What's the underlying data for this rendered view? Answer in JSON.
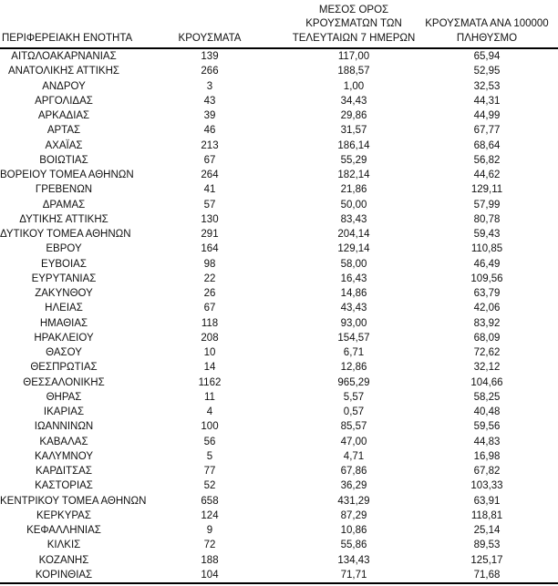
{
  "table": {
    "columns": [
      {
        "id": "region",
        "label_lines": [
          "ΠΕΡΙΦΕΡΕΙΑΚΗ ΕΝΟΤΗΤΑ"
        ]
      },
      {
        "id": "cases",
        "label_lines": [
          "ΚΡΟΥΣΜΑΤΑ"
        ]
      },
      {
        "id": "avg7",
        "label_lines": [
          "ΜΕΣΟΣ ΟΡΟΣ",
          "ΚΡΟΥΣΜΑΤΩΝ ΤΩΝ",
          "ΤΕΛΕΥΤΑΙΩΝ 7 ΗΜΕΡΩΝ"
        ]
      },
      {
        "id": "per100k",
        "label_lines": [
          "ΚΡΟΥΣΜΑΤΑ ΑΝΑ 100000",
          "ΠΛΗΘΥΣΜΟ"
        ]
      }
    ],
    "rows": [
      {
        "region": "ΑΙΤΩΛΟΑΚΑΡΝΑΝΙΑΣ",
        "cases": "139",
        "avg7": "117,00",
        "per100k": "65,94"
      },
      {
        "region": "ΑΝΑΤΟΛΙΚΗΣ ΑΤΤΙΚΗΣ",
        "cases": "266",
        "avg7": "188,57",
        "per100k": "52,95"
      },
      {
        "region": "ΑΝΔΡΟΥ",
        "cases": "3",
        "avg7": "1,00",
        "per100k": "32,53"
      },
      {
        "region": "ΑΡΓΟΛΙΔΑΣ",
        "cases": "43",
        "avg7": "34,43",
        "per100k": "44,31"
      },
      {
        "region": "ΑΡΚΑΔΙΑΣ",
        "cases": "39",
        "avg7": "29,86",
        "per100k": "44,99"
      },
      {
        "region": "ΑΡΤΑΣ",
        "cases": "46",
        "avg7": "31,57",
        "per100k": "67,77"
      },
      {
        "region": "ΑΧΑΪΑΣ",
        "cases": "213",
        "avg7": "186,14",
        "per100k": "68,64"
      },
      {
        "region": "ΒΟΙΩΤΙΑΣ",
        "cases": "67",
        "avg7": "55,29",
        "per100k": "56,82"
      },
      {
        "region": "ΒΟΡΕΙΟΥ ΤΟΜΕΑ ΑΘΗΝΩΝ",
        "cases": "264",
        "avg7": "182,14",
        "per100k": "44,62"
      },
      {
        "region": "ΓΡΕΒΕΝΩΝ",
        "cases": "41",
        "avg7": "21,86",
        "per100k": "129,11"
      },
      {
        "region": "ΔΡΑΜΑΣ",
        "cases": "57",
        "avg7": "50,00",
        "per100k": "57,99"
      },
      {
        "region": "ΔΥΤΙΚΗΣ ΑΤΤΙΚΗΣ",
        "cases": "130",
        "avg7": "83,43",
        "per100k": "80,78"
      },
      {
        "region": "ΔΥΤΙΚΟΥ ΤΟΜΕΑ ΑΘΗΝΩΝ",
        "cases": "291",
        "avg7": "204,14",
        "per100k": "59,43"
      },
      {
        "region": "ΕΒΡΟΥ",
        "cases": "164",
        "avg7": "129,14",
        "per100k": "110,85"
      },
      {
        "region": "ΕΥΒΟΙΑΣ",
        "cases": "98",
        "avg7": "58,00",
        "per100k": "46,49"
      },
      {
        "region": "ΕΥΡΥΤΑΝΙΑΣ",
        "cases": "22",
        "avg7": "16,43",
        "per100k": "109,56"
      },
      {
        "region": "ΖΑΚΥΝΘΟΥ",
        "cases": "26",
        "avg7": "14,86",
        "per100k": "63,79"
      },
      {
        "region": "ΗΛΕΙΑΣ",
        "cases": "67",
        "avg7": "43,43",
        "per100k": "42,06"
      },
      {
        "region": "ΗΜΑΘΙΑΣ",
        "cases": "118",
        "avg7": "93,00",
        "per100k": "83,92"
      },
      {
        "region": "ΗΡΑΚΛΕΙΟΥ",
        "cases": "208",
        "avg7": "154,57",
        "per100k": "68,09"
      },
      {
        "region": "ΘΑΣΟΥ",
        "cases": "10",
        "avg7": "6,71",
        "per100k": "72,62"
      },
      {
        "region": "ΘΕΣΠΡΩΤΙΑΣ",
        "cases": "14",
        "avg7": "12,86",
        "per100k": "32,12"
      },
      {
        "region": "ΘΕΣΣΑΛΟΝΙΚΗΣ",
        "cases": "1162",
        "avg7": "965,29",
        "per100k": "104,66"
      },
      {
        "region": "ΘΗΡΑΣ",
        "cases": "11",
        "avg7": "5,57",
        "per100k": "58,25"
      },
      {
        "region": "ΙΚΑΡΙΑΣ",
        "cases": "4",
        "avg7": "0,57",
        "per100k": "40,48"
      },
      {
        "region": "ΙΩΑΝΝΙΝΩΝ",
        "cases": "100",
        "avg7": "85,57",
        "per100k": "59,56"
      },
      {
        "region": "ΚΑΒΑΛΑΣ",
        "cases": "56",
        "avg7": "47,00",
        "per100k": "44,83"
      },
      {
        "region": "ΚΑΛΥΜΝΟΥ",
        "cases": "5",
        "avg7": "4,71",
        "per100k": "16,98"
      },
      {
        "region": "ΚΑΡΔΙΤΣΑΣ",
        "cases": "77",
        "avg7": "67,86",
        "per100k": "67,82"
      },
      {
        "region": "ΚΑΣΤΟΡΙΑΣ",
        "cases": "52",
        "avg7": "36,29",
        "per100k": "103,33"
      },
      {
        "region": "ΚΕΝΤΡΙΚΟΥ ΤΟΜΕΑ ΑΘΗΝΩΝ",
        "cases": "658",
        "avg7": "431,29",
        "per100k": "63,91"
      },
      {
        "region": "ΚΕΡΚΥΡΑΣ",
        "cases": "124",
        "avg7": "87,29",
        "per100k": "118,81"
      },
      {
        "region": "ΚΕΦΑΛΛΗΝΙΑΣ",
        "cases": "9",
        "avg7": "10,86",
        "per100k": "25,14"
      },
      {
        "region": "ΚΙΛΚΙΣ",
        "cases": "72",
        "avg7": "55,86",
        "per100k": "89,53"
      },
      {
        "region": "ΚΟΖΑΝΗΣ",
        "cases": "188",
        "avg7": "134,43",
        "per100k": "125,17"
      },
      {
        "region": "ΚΟΡΙΝΘΙΑΣ",
        "cases": "104",
        "avg7": "71,71",
        "per100k": "71,68"
      }
    ]
  }
}
